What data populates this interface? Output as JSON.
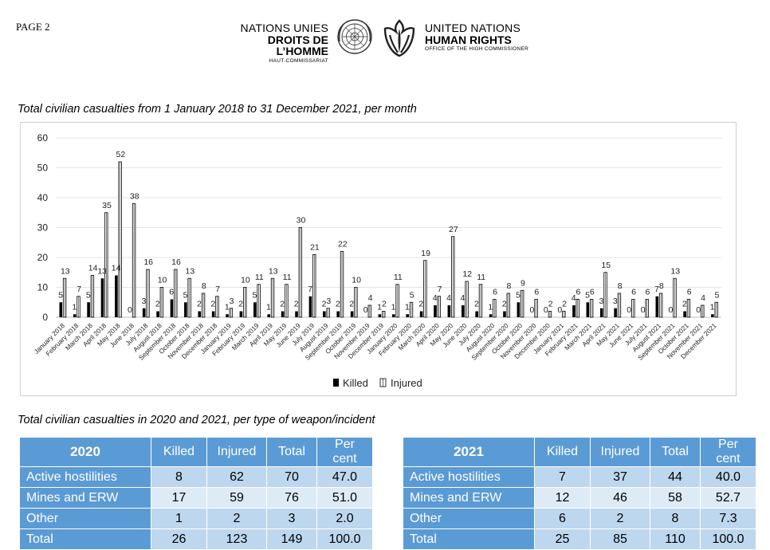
{
  "header": {
    "page_label": "PAGE 2",
    "left_line1": "NATIONS UNIES",
    "left_line2": "DROITS DE L’HOMME",
    "left_line3": "HAUT-COMMISSARIAT",
    "right_line1": "UNITED NATIONS",
    "right_line2": "HUMAN RIGHTS",
    "right_line3": "OFFICE OF THE HIGH COMMISSIONER"
  },
  "chart_title": "Total civilian casualties from 1 January 2018 to 31 December 2021, per month",
  "chart_data": {
    "type": "bar",
    "ylim": [
      0,
      60
    ],
    "yticks": [
      0,
      10,
      20,
      30,
      40,
      50,
      60
    ],
    "grid": true,
    "legend_position": "bottom",
    "categories": [
      "January 2018",
      "February 2018",
      "March 2018",
      "April 2018",
      "May 2018",
      "June 2018",
      "July 2018",
      "August 2018",
      "September 2018",
      "October 2018",
      "November 2018",
      "December 2018",
      "January 2019",
      "February 2019",
      "March 2019",
      "April 2019",
      "May 2019",
      "June 2019",
      "July 2019",
      "August 2019",
      "September 2019",
      "October 2019",
      "November 2019",
      "December 2019",
      "January 2020",
      "February 2020",
      "March 2020",
      "April 2020",
      "May 2020",
      "June 2020",
      "July 2020",
      "August 2020",
      "September 2020",
      "October 2020",
      "November 2020",
      "December 2020",
      "January 2021",
      "February 2021",
      "March 2021",
      "April 2021",
      "May 2021",
      "June 2021",
      "July 2021",
      "August 2021",
      "September 2021",
      "October 2021",
      "November 2021",
      "December 2021"
    ],
    "series": [
      {
        "name": "Killed",
        "values": [
          5,
          1,
          5,
          13,
          14,
          0,
          3,
          2,
          6,
          5,
          2,
          2,
          1,
          2,
          5,
          1,
          2,
          2,
          7,
          2,
          2,
          2,
          0,
          1,
          1,
          1,
          2,
          4,
          4,
          4,
          2,
          1,
          2,
          5,
          0,
          0,
          0,
          4,
          5,
          3,
          3,
          0,
          0,
          7,
          0,
          2,
          0,
          1
        ]
      },
      {
        "name": "Injured",
        "values": [
          13,
          7,
          14,
          35,
          52,
          38,
          16,
          10,
          16,
          13,
          8,
          7,
          3,
          10,
          11,
          13,
          11,
          30,
          21,
          3,
          22,
          10,
          4,
          2,
          11,
          5,
          19,
          7,
          27,
          12,
          11,
          6,
          8,
          9,
          6,
          2,
          2,
          6,
          6,
          15,
          8,
          6,
          6,
          8,
          13,
          6,
          4,
          5
        ]
      }
    ]
  },
  "table_title": "Total civilian casualties in 2020 and 2021, per type of weapon/incident",
  "tables": [
    {
      "year": "2020",
      "headers": [
        "Killed",
        "Injured",
        "Total",
        "Per cent"
      ],
      "rows": [
        {
          "label": "Active hostilities",
          "values": [
            "8",
            "62",
            "70",
            "47.0"
          ]
        },
        {
          "label": "Mines and ERW",
          "values": [
            "17",
            "59",
            "76",
            "51.0"
          ]
        },
        {
          "label": "Other",
          "values": [
            "1",
            "2",
            "3",
            "2.0"
          ]
        },
        {
          "label": "Total",
          "values": [
            "26",
            "123",
            "149",
            "100.0"
          ]
        }
      ]
    },
    {
      "year": "2021",
      "headers": [
        "Killed",
        "Injured",
        "Total",
        "Per cent"
      ],
      "rows": [
        {
          "label": "Active hostilities",
          "values": [
            "7",
            "37",
            "44",
            "40.0"
          ]
        },
        {
          "label": "Mines and ERW",
          "values": [
            "12",
            "46",
            "58",
            "52.7"
          ]
        },
        {
          "label": "Other",
          "values": [
            "6",
            "2",
            "8",
            "7.3"
          ]
        },
        {
          "label": "Total",
          "values": [
            "25",
            "85",
            "110",
            "100.0"
          ]
        }
      ]
    }
  ]
}
